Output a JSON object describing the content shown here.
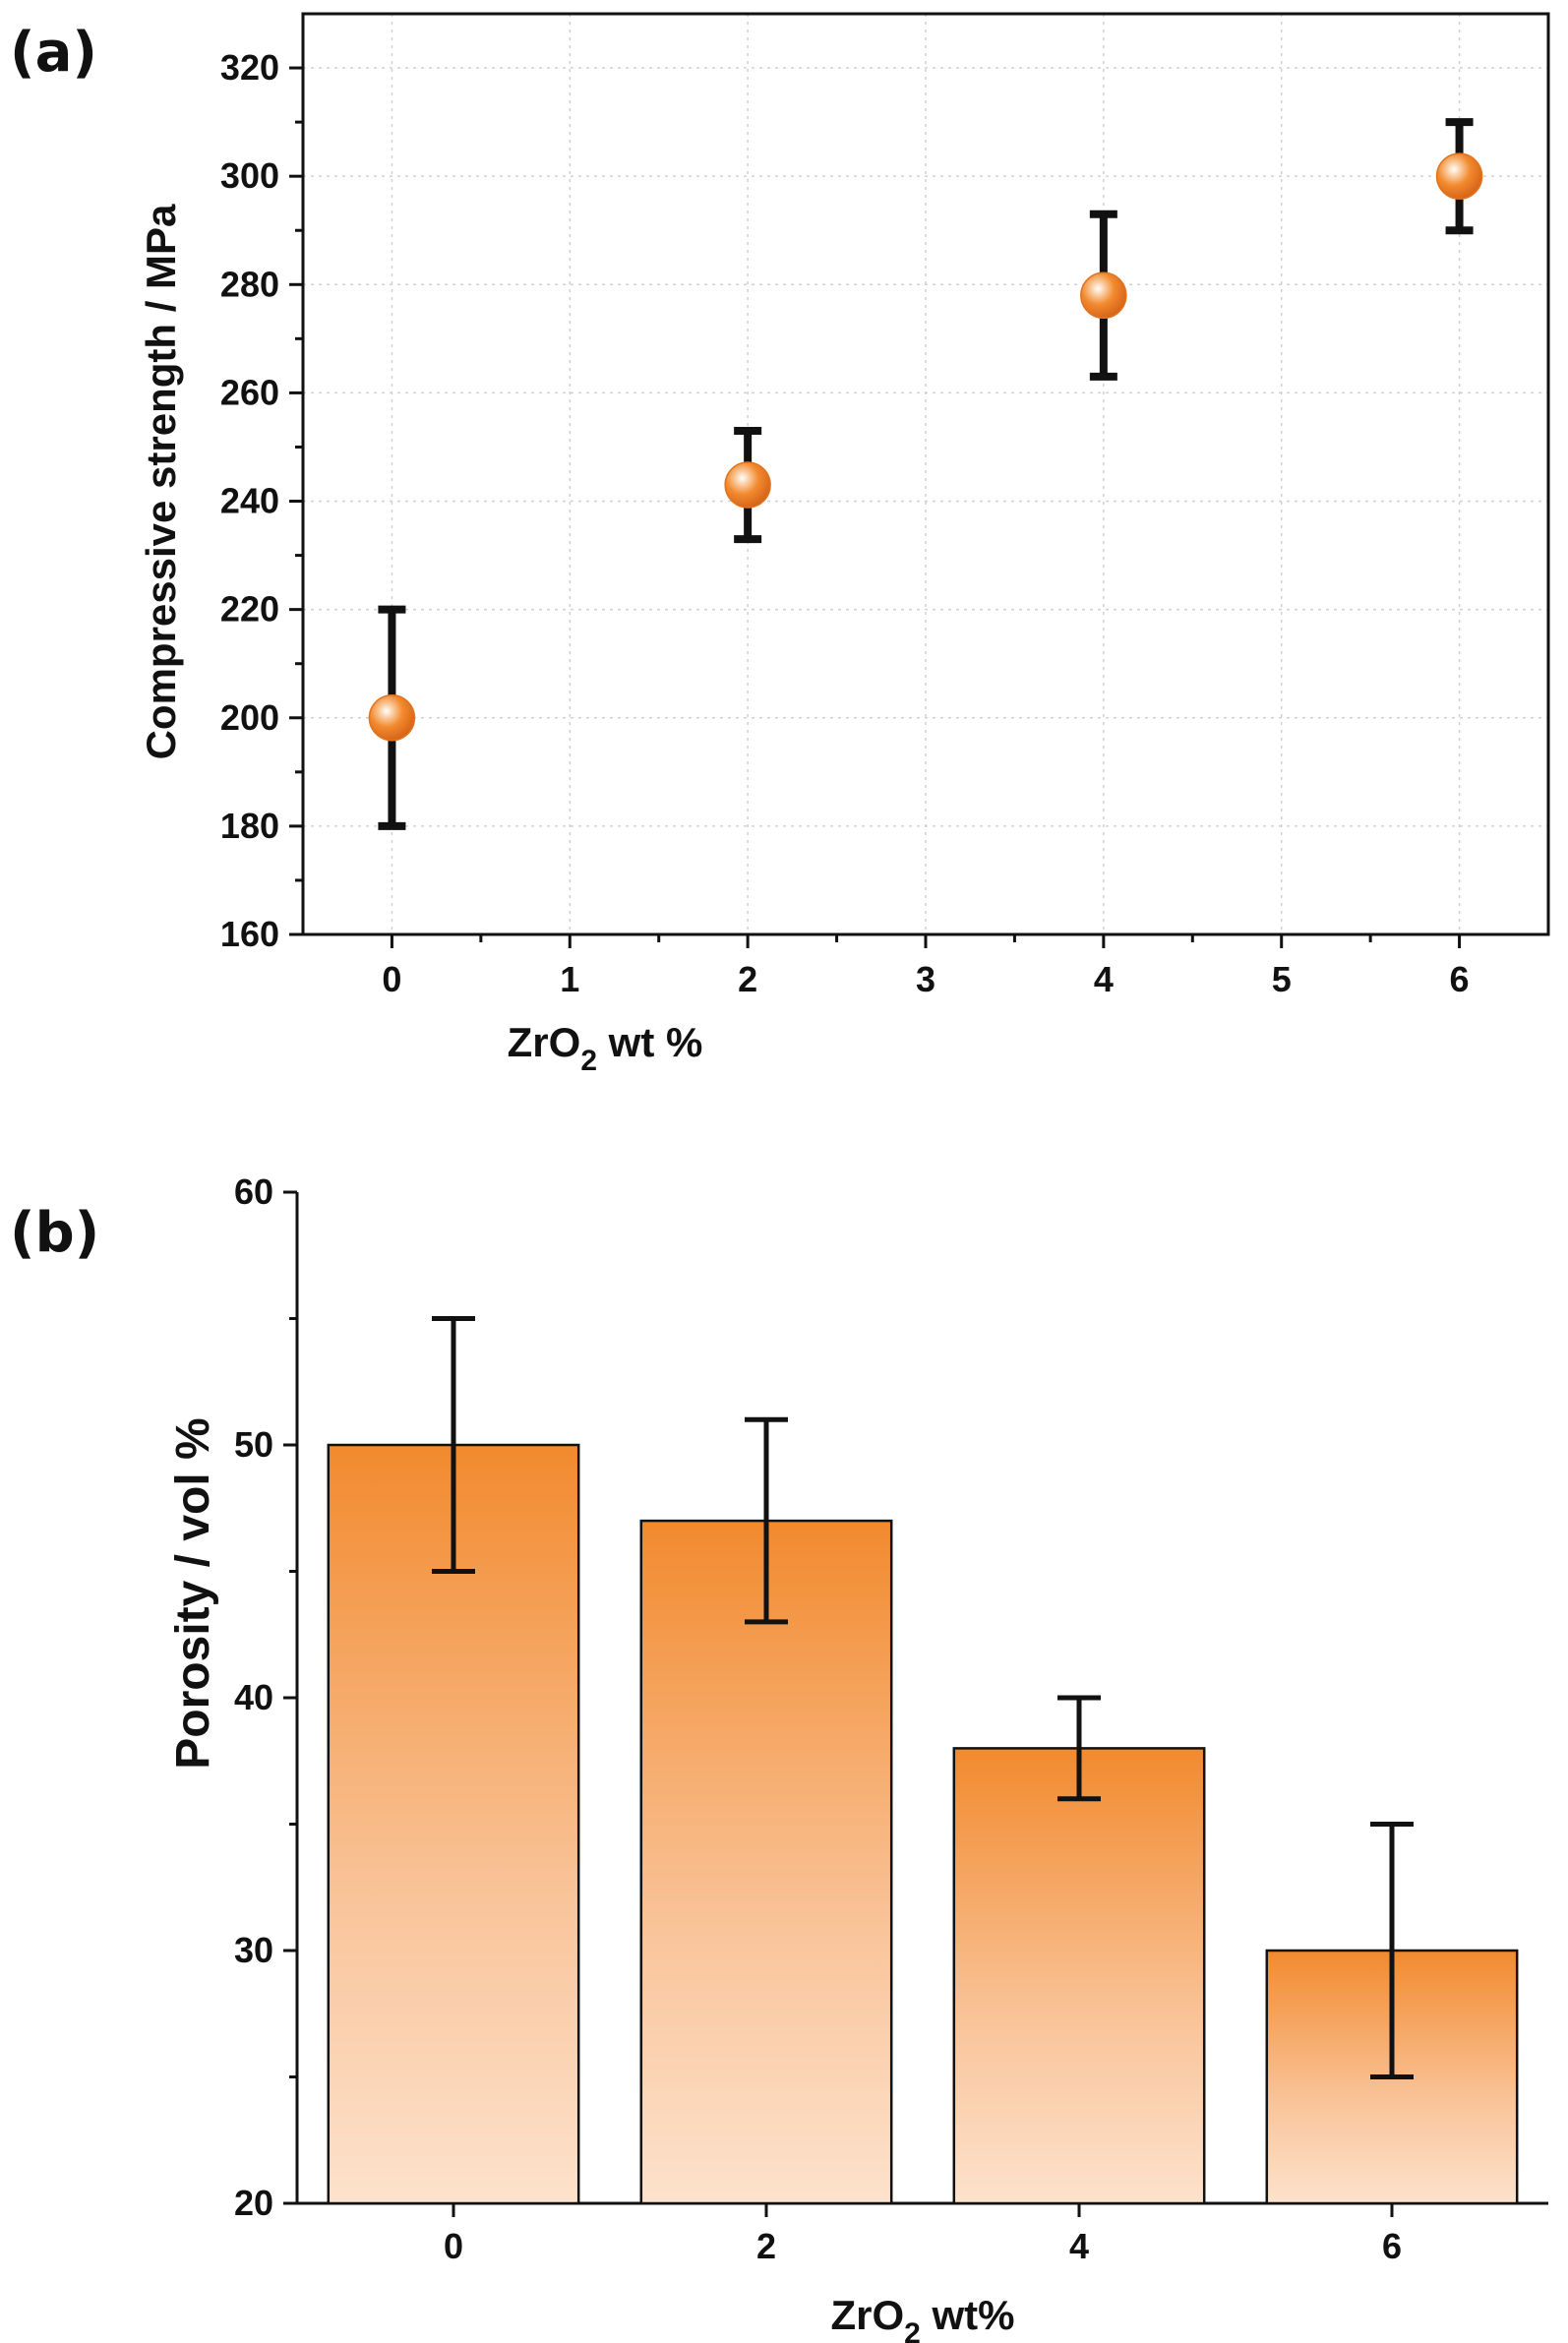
{
  "chart_data": [
    {
      "type": "scatter",
      "panel_label": "(a)",
      "xlabel_main": "ZrO",
      "xlabel_sub": "2",
      "xlabel_tail": " wt %",
      "ylabel": "Compressive strength / MPa",
      "xlim": [
        -0.5,
        6.5
      ],
      "ylim": [
        160,
        330
      ],
      "x_ticks": [
        "0",
        "1",
        "2",
        "3",
        "4",
        "5",
        "6"
      ],
      "y_ticks": [
        "160",
        "180",
        "200",
        "220",
        "240",
        "260",
        "280",
        "300",
        "320"
      ],
      "grid": true,
      "marker_color": "#f28a2e",
      "points": [
        {
          "x": 0,
          "y": 200,
          "err": 20
        },
        {
          "x": 2,
          "y": 243,
          "err": 10
        },
        {
          "x": 4,
          "y": 278,
          "err": 15
        },
        {
          "x": 6,
          "y": 300,
          "err": 10
        }
      ]
    },
    {
      "type": "bar",
      "panel_label": "(b)",
      "xlabel_main": "ZrO",
      "xlabel_sub": "2",
      "xlabel_tail": " wt%",
      "ylabel": "Porosity / vol %",
      "ylim": [
        20,
        60
      ],
      "categories": [
        "0",
        "2",
        "4",
        "6"
      ],
      "y_ticks": [
        "20",
        "30",
        "40",
        "50",
        "60"
      ],
      "grid": false,
      "bar_color_top": "#f28a2e",
      "bar_color_bottom": "#fde2cc",
      "values": [
        50,
        47,
        38,
        30
      ],
      "errors": [
        5,
        4,
        2,
        5
      ]
    }
  ]
}
